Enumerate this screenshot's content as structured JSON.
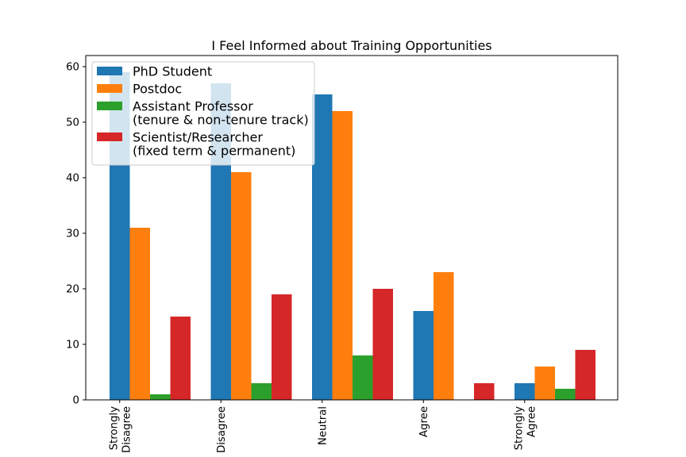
{
  "chart_data": {
    "type": "bar",
    "title": "I Feel Informed about Training Opportunities",
    "xlabel": "",
    "ylabel": "",
    "categories": [
      [
        "Strongly",
        "Disagree"
      ],
      [
        "Disagree"
      ],
      [
        "Neutral"
      ],
      [
        "Agree"
      ],
      [
        "Strongly",
        "Agree"
      ]
    ],
    "ylim": [
      0,
      62
    ],
    "yticks": [
      0,
      10,
      20,
      30,
      40,
      50,
      60
    ],
    "grid": false,
    "legend_position": "upper-left",
    "series": [
      {
        "name": [
          "PhD Student"
        ],
        "color": "#1f77b4",
        "values": [
          59,
          57,
          55,
          16,
          3
        ]
      },
      {
        "name": [
          "Postdoc"
        ],
        "color": "#ff7f0e",
        "values": [
          31,
          41,
          52,
          23,
          6
        ]
      },
      {
        "name": [
          "Assistant Professor",
          "(tenure & non-tenure track)"
        ],
        "color": "#2ca02c",
        "values": [
          1,
          3,
          8,
          0,
          2
        ]
      },
      {
        "name": [
          "Scientist/Researcher",
          "(fixed term & permanent)"
        ],
        "color": "#d62728",
        "values": [
          15,
          19,
          20,
          3,
          9
        ]
      }
    ]
  }
}
